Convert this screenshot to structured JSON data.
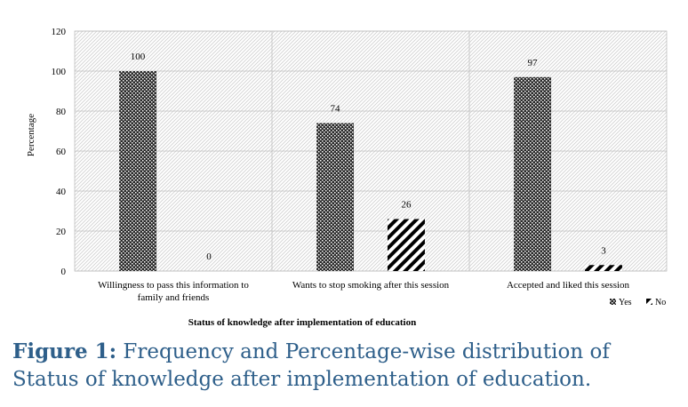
{
  "chart_data": {
    "type": "bar",
    "categories": [
      "Willingness to pass this information to|family and friends",
      "Wants to stop smoking after this session",
      "Accepted and liked this session"
    ],
    "series": [
      {
        "name": "Yes",
        "values": [
          100,
          74,
          97
        ],
        "pattern": "dotted-checker"
      },
      {
        "name": "No",
        "values": [
          0,
          26,
          3
        ],
        "pattern": "diagonal-stripes"
      }
    ],
    "ylabel": "Percentage",
    "xlabel": "Status of knowledge after implementation of education",
    "ylim": [
      0,
      120
    ],
    "yticks": [
      0,
      20,
      40,
      60,
      80,
      100,
      120
    ],
    "grid": true,
    "legend_position": "bottom-right"
  },
  "caption": {
    "label": "Figure 1:",
    "text": " Frequency and Percentage-wise distribution of Status of knowledge after implementation of education."
  },
  "colors": {
    "caption": "#2e5f8a",
    "bars": "#111111",
    "grid": "#bfbfbf"
  }
}
